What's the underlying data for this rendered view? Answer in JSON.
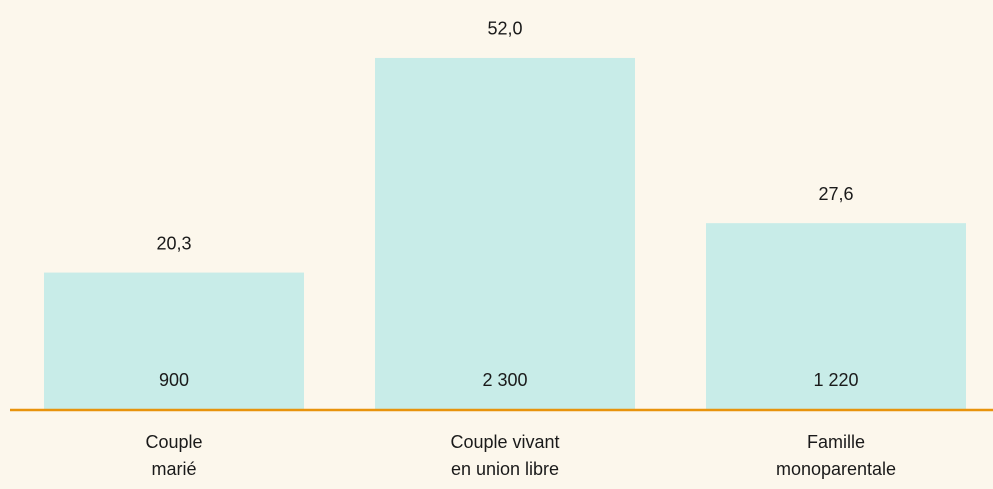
{
  "chart_data": {
    "type": "bar",
    "categories": [
      [
        "Couple",
        "marié"
      ],
      [
        "Couple vivant",
        "en union libre"
      ],
      [
        "Famille",
        "monoparentale"
      ]
    ],
    "values": [
      20.3,
      52.0,
      27.6
    ],
    "value_labels": [
      "20,3",
      "52,0",
      "27,6"
    ],
    "counts": [
      900,
      2300,
      1220
    ],
    "count_labels": [
      "900",
      "2 300",
      "1 220"
    ],
    "color": "#c8ece8",
    "baseline_color": "#e8930c"
  }
}
